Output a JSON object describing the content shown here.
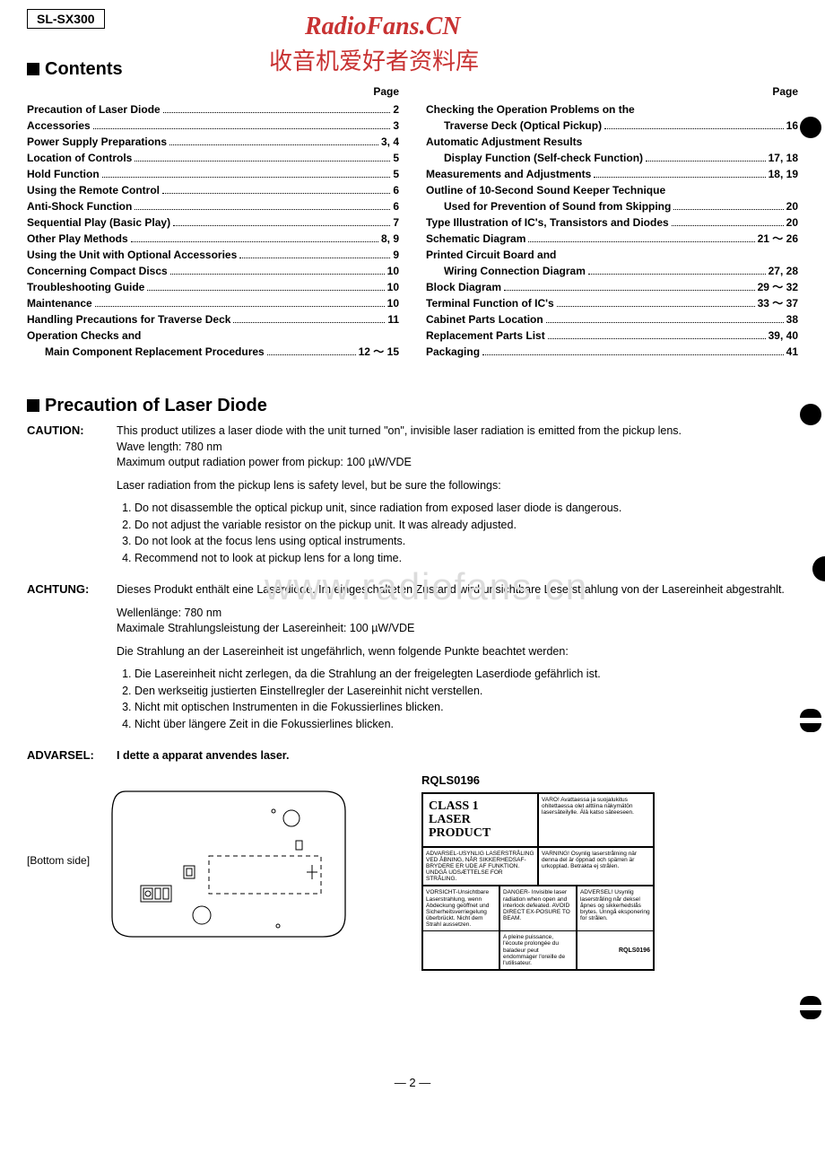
{
  "model": "SL-SX300",
  "watermark": {
    "line1": "RadioFans.CN",
    "line2": "收音机爱好者资料库",
    "bg": "www.radiofans.cn"
  },
  "headings": {
    "contents": "Contents",
    "precaution": "Precaution of Laser Diode",
    "page": "Page"
  },
  "toc_left": [
    {
      "t": "Precaution of Laser Diode",
      "p": "2"
    },
    {
      "t": "Accessories",
      "p": "3"
    },
    {
      "t": "Power Supply Preparations",
      "p": "3, 4"
    },
    {
      "t": "Location of Controls",
      "p": "5"
    },
    {
      "t": "Hold Function",
      "p": "5"
    },
    {
      "t": "Using the Remote Control",
      "p": "6"
    },
    {
      "t": "Anti-Shock Function",
      "p": "6"
    },
    {
      "t": "Sequential Play (Basic Play)",
      "p": "7"
    },
    {
      "t": "Other Play Methods",
      "p": "8, 9"
    },
    {
      "t": "Using the Unit with Optional Accessories",
      "p": "9"
    },
    {
      "t": "Concerning Compact Discs",
      "p": "10"
    },
    {
      "t": "Troubleshooting Guide",
      "p": "10"
    },
    {
      "t": "Maintenance",
      "p": "10"
    },
    {
      "t": "Handling Precautions for Traverse Deck",
      "p": "11"
    },
    {
      "t": "Operation Checks and",
      "p": "",
      "nopg": true
    },
    {
      "t": "Main Component Replacement Procedures",
      "p": "12 ～ 15",
      "indent": true
    }
  ],
  "toc_right": [
    {
      "t": "Checking the Operation Problems on the",
      "p": "",
      "nopg": true
    },
    {
      "t": "Traverse Deck (Optical Pickup)",
      "p": "16",
      "indent": true
    },
    {
      "t": "Automatic Adjustment Results",
      "p": "",
      "nopg": true
    },
    {
      "t": "Display Function (Self-check Function)",
      "p": "17, 18",
      "indent": true
    },
    {
      "t": "Measurements and Adjustments",
      "p": "18, 19"
    },
    {
      "t": "Outline of 10-Second Sound Keeper Technique",
      "p": "",
      "nopg": true
    },
    {
      "t": "Used for Prevention of Sound from Skipping",
      "p": "20",
      "indent": true
    },
    {
      "t": "Type Illustration of IC's, Transistors and Diodes",
      "p": "20"
    },
    {
      "t": "Schematic Diagram",
      "p": "21 ～ 26"
    },
    {
      "t": "Printed Circuit Board and",
      "p": "",
      "nopg": true
    },
    {
      "t": "Wiring Connection Diagram",
      "p": "27, 28",
      "indent": true
    },
    {
      "t": "Block Diagram",
      "p": "29 ～ 32"
    },
    {
      "t": "Terminal Function of IC's",
      "p": "33 ～ 37"
    },
    {
      "t": "Cabinet Parts Location",
      "p": "38"
    },
    {
      "t": "Replacement Parts List",
      "p": "39, 40"
    },
    {
      "t": "Packaging",
      "p": "41"
    }
  ],
  "caution": {
    "label": "CAUTION:",
    "intro": "This product utilizes a laser diode with the unit turned \"on\", invisible laser radiation is emitted from the pickup lens.",
    "wave": "Wave length: 780 nm",
    "maxout": "Maximum output radiation power from pickup: 100 µW/VDE",
    "safe": "Laser radiation from the pickup lens is safety level, but be sure the followings:",
    "items": [
      "Do not disassemble the optical pickup unit, since radiation from exposed laser diode is dangerous.",
      "Do not adjust the variable resistor on the pickup unit.   It was already adjusted.",
      "Do not look at the focus lens using optical instruments.",
      "Recommend not to look at pickup lens for a long time."
    ]
  },
  "achtung": {
    "label": "ACHTUNG:",
    "intro": "Dieses Produkt enthält eine Laserdiode.   Im eingeschalteten Zustand wird unsichtbare Leserstrahlung von der Lasereinheit abgestrahlt.",
    "wave": "Wellenlänge: 780 nm",
    "maxout": "Maximale Strahlungsleistung der Lasereinheit: 100 µW/VDE",
    "safe": "Die Strahlung an der Lasereinheit ist ungefährlich, wenn folgende Punkte beachtet werden:",
    "items": [
      "Die Lasereinheit nicht zerlegen, da die Strahlung an der freigelegten Laserdiode gefährlich ist.",
      "Den werkseitig justierten Einstellregler der Lasereinhit nicht verstellen.",
      "Nicht mit optischen Instrumenten in die Fokussierlines blicken.",
      "Nicht über längere Zeit in die Fokussierlines blicken."
    ]
  },
  "advarsel": {
    "label": "ADVARSEL:",
    "text": "I dette a apparat anvendes laser."
  },
  "figure": {
    "bottom_side": "[Bottom side]",
    "rqls": "RQLS0196",
    "class1_a": "CLASS 1",
    "class1_b": "LASER PRODUCT",
    "cells": {
      "fi": "VARO! Avattaessa ja suojalukitus ohitettaessa olet alttiina näkymätön lasersäteilylle. Älä katso säteeseen.",
      "da": "ADVARSEL-USYNLIG LASERSTRÅLING VED ÅBNING, NÅR SIKKERHEDSAF-BRYDERE ER UDE AF FUNKTION. UNDGÅ UDSÆTTELSE FOR STRÅLING.",
      "sv": "VARNING! Osynlig laserstrålning när denna del är öppnad och spärren är urkopplad. Betrakta ej strålen.",
      "de": "VORSICHT-Unsichtbare Laserstrahlung, wenn Abdeckung geöffnet und Sicherheitsverriegelung überbrückt. Nicht dem Strahl aussetzen.",
      "no": "ADVERSEL! Usynlig laserstråling når deksel åpnes og sikkerhedslås brytes. Unngå eksponering for strålen.",
      "en": "DANGER- Invisible laser radiation when open and interlock defeated. AVOID DIRECT EX-POSURE TO BEAM.",
      "fr": "A pleine puissance, l'écoute prolongée du baladeur peut endommager l'oreille de l'utilisateur.",
      "rqls": "RQLS0196"
    }
  },
  "pagenum": "— 2 —"
}
